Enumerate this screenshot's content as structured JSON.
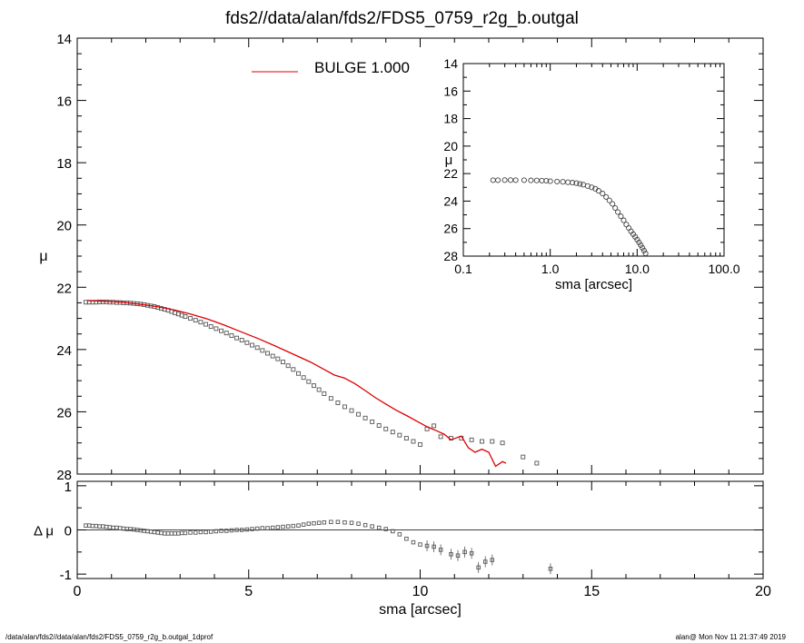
{
  "title": "fds2//data/alan/fds2/FDS5_0759_r2g_b.outgal",
  "footer_left": "/data/alan/fds2//data/alan/fds2/FDS5_0759_r2g_b.outgal_1dprof",
  "footer_right": "alan@  Mon Nov 11 21:37:49 2019",
  "chart_data": [
    {
      "panel": "main",
      "type": "scatter",
      "xlabel": "",
      "ylabel": "μ",
      "xlim": [
        0,
        20
      ],
      "ylim": [
        28,
        14
      ],
      "y_inverted": true,
      "x_ticks": [
        0,
        5,
        10,
        15,
        20
      ],
      "y_ticks": [
        14,
        16,
        18,
        20,
        22,
        24,
        26,
        28
      ],
      "legend": {
        "label": "BULGE  1.000",
        "color": "#dd0000",
        "placement": "top-left"
      },
      "series": [
        {
          "name": "data",
          "marker": "square",
          "color": "#555555",
          "x": [
            0.25,
            0.35,
            0.45,
            0.55,
            0.65,
            0.75,
            0.85,
            0.95,
            1.05,
            1.15,
            1.25,
            1.35,
            1.45,
            1.55,
            1.65,
            1.75,
            1.85,
            1.95,
            2.05,
            2.15,
            2.25,
            2.35,
            2.45,
            2.55,
            2.65,
            2.75,
            2.85,
            2.95,
            3.05,
            3.15,
            3.3,
            3.45,
            3.6,
            3.75,
            3.9,
            4.05,
            4.2,
            4.35,
            4.5,
            4.65,
            4.8,
            4.95,
            5.1,
            5.25,
            5.4,
            5.55,
            5.7,
            5.85,
            6.0,
            6.15,
            6.3,
            6.45,
            6.6,
            6.75,
            6.9,
            7.05,
            7.2,
            7.4,
            7.6,
            7.8,
            8.0,
            8.2,
            8.4,
            8.6,
            8.8,
            9.0,
            9.2,
            9.4,
            9.6,
            9.8,
            10.0,
            10.2,
            10.4,
            10.6,
            10.9,
            11.2,
            11.5,
            11.8,
            12.1,
            12.4,
            13.0,
            13.4
          ],
          "y": [
            22.48,
            22.48,
            22.48,
            22.48,
            22.47,
            22.47,
            22.47,
            22.48,
            22.48,
            22.49,
            22.49,
            22.5,
            22.5,
            22.51,
            22.52,
            22.53,
            22.54,
            22.56,
            22.58,
            22.6,
            22.62,
            22.65,
            22.68,
            22.71,
            22.74,
            22.78,
            22.82,
            22.86,
            22.9,
            22.94,
            23.0,
            23.06,
            23.12,
            23.19,
            23.26,
            23.33,
            23.4,
            23.47,
            23.55,
            23.63,
            23.7,
            23.78,
            23.86,
            23.94,
            24.03,
            24.12,
            24.21,
            24.3,
            24.4,
            24.52,
            24.64,
            24.77,
            24.9,
            25.03,
            25.16,
            25.29,
            25.42,
            25.57,
            25.71,
            25.84,
            25.96,
            26.08,
            26.2,
            26.32,
            26.44,
            26.55,
            26.65,
            26.75,
            26.85,
            26.95,
            27.05,
            26.55,
            26.45,
            26.8,
            26.85,
            26.85,
            26.9,
            26.95,
            26.95,
            27.0,
            27.45,
            27.65
          ]
        },
        {
          "name": "BULGE  1.000",
          "type": "line",
          "color": "#dd0000",
          "x": [
            0.3,
            0.8,
            1.3,
            1.8,
            2.3,
            2.8,
            3.3,
            3.8,
            4.3,
            4.8,
            5.3,
            5.8,
            6.3,
            6.8,
            7.2,
            7.5,
            7.8,
            8.1,
            8.4,
            8.7,
            9.0,
            9.3,
            9.6,
            9.9,
            10.2,
            10.5,
            10.7,
            10.9,
            11.2,
            11.4,
            11.6,
            11.8,
            12.0,
            12.2,
            12.4,
            12.5
          ],
          "y": [
            22.43,
            22.45,
            22.48,
            22.54,
            22.62,
            22.72,
            22.86,
            23.02,
            23.22,
            23.44,
            23.66,
            23.9,
            24.15,
            24.4,
            24.64,
            24.82,
            24.92,
            25.1,
            25.32,
            25.55,
            25.75,
            25.95,
            26.12,
            26.3,
            26.48,
            26.62,
            26.72,
            26.9,
            26.78,
            27.15,
            27.3,
            27.2,
            27.3,
            27.75,
            27.6,
            27.65
          ]
        }
      ]
    },
    {
      "panel": "inset",
      "type": "scatter",
      "xlabel": "sma [arcsec]",
      "ylabel": "μ",
      "x_scale": "log",
      "xlim": [
        0.1,
        100
      ],
      "ylim": [
        28,
        14
      ],
      "y_inverted": true,
      "x_ticks": [
        0.1,
        1.0,
        10.0,
        100.0
      ],
      "x_tick_labels": [
        "0.1",
        "1.0",
        "10.0",
        "100.0"
      ],
      "y_ticks": [
        14,
        16,
        18,
        20,
        22,
        24,
        26,
        28
      ],
      "series": [
        {
          "name": "",
          "marker": "circle",
          "color": "#444444",
          "x": [
            0.22,
            0.25,
            0.3,
            0.35,
            0.4,
            0.5,
            0.6,
            0.7,
            0.8,
            0.9,
            1.0,
            1.2,
            1.4,
            1.6,
            1.8,
            2.0,
            2.2,
            2.4,
            2.7,
            3.0,
            3.3,
            3.6,
            4.0,
            4.4,
            4.8,
            5.2,
            5.6,
            6.0,
            6.5,
            7.0,
            7.5,
            8.0,
            8.5,
            9.0,
            9.5,
            10.0,
            10.5,
            11.0,
            11.5,
            12.0,
            12.5
          ],
          "y": [
            22.48,
            22.48,
            22.47,
            22.47,
            22.48,
            22.48,
            22.49,
            22.5,
            22.51,
            22.52,
            22.55,
            22.58,
            22.6,
            22.63,
            22.66,
            22.7,
            22.75,
            22.8,
            22.9,
            23.0,
            23.1,
            23.25,
            23.45,
            23.7,
            23.95,
            24.2,
            24.5,
            24.8,
            25.1,
            25.4,
            25.7,
            25.95,
            26.2,
            26.4,
            26.6,
            26.8,
            27.0,
            27.2,
            27.4,
            27.6,
            27.8
          ]
        }
      ]
    },
    {
      "panel": "residual",
      "type": "scatter",
      "xlabel": "sma [arcsec]",
      "ylabel": "Δ μ",
      "xlim": [
        0,
        20
      ],
      "ylim": [
        -1.1,
        1.1
      ],
      "x_ticks": [
        0,
        5,
        10,
        15,
        20
      ],
      "y_ticks": [
        -1,
        0,
        1
      ],
      "zero_line": true,
      "series": [
        {
          "name": "",
          "marker": "square",
          "color": "#555555",
          "x": [
            0.25,
            0.35,
            0.45,
            0.55,
            0.65,
            0.75,
            0.85,
            0.95,
            1.05,
            1.15,
            1.25,
            1.35,
            1.45,
            1.55,
            1.65,
            1.75,
            1.85,
            1.95,
            2.05,
            2.15,
            2.25,
            2.35,
            2.45,
            2.55,
            2.65,
            2.75,
            2.85,
            2.95,
            3.05,
            3.15,
            3.3,
            3.45,
            3.6,
            3.75,
            3.9,
            4.05,
            4.2,
            4.35,
            4.5,
            4.65,
            4.8,
            4.95,
            5.1,
            5.25,
            5.4,
            5.55,
            5.7,
            5.85,
            6.0,
            6.15,
            6.3,
            6.45,
            6.6,
            6.75,
            6.9,
            7.05,
            7.2,
            7.4,
            7.6,
            7.8,
            8.0,
            8.2,
            8.4,
            8.6,
            8.8,
            9.0,
            9.2,
            9.4,
            9.6,
            9.8,
            10.0,
            10.2,
            10.4,
            10.6,
            10.9,
            11.1,
            11.3,
            11.5,
            11.7,
            11.9,
            12.1,
            13.8
          ],
          "y": [
            0.1,
            0.1,
            0.09,
            0.09,
            0.08,
            0.08,
            0.07,
            0.06,
            0.05,
            0.05,
            0.04,
            0.03,
            0.02,
            0.02,
            0.01,
            0.0,
            -0.01,
            -0.02,
            -0.03,
            -0.04,
            -0.05,
            -0.06,
            -0.07,
            -0.08,
            -0.08,
            -0.08,
            -0.08,
            -0.08,
            -0.07,
            -0.07,
            -0.06,
            -0.06,
            -0.05,
            -0.05,
            -0.04,
            -0.03,
            -0.02,
            -0.02,
            -0.01,
            0.0,
            0.0,
            0.01,
            0.02,
            0.03,
            0.04,
            0.04,
            0.05,
            0.06,
            0.07,
            0.08,
            0.09,
            0.1,
            0.12,
            0.14,
            0.15,
            0.16,
            0.17,
            0.18,
            0.18,
            0.17,
            0.16,
            0.14,
            0.11,
            0.08,
            0.05,
            0.02,
            -0.03,
            -0.1,
            -0.2,
            -0.28,
            -0.33,
            -0.36,
            -0.38,
            -0.45,
            -0.55,
            -0.58,
            -0.5,
            -0.53,
            -0.85,
            -0.72,
            -0.68,
            -0.88
          ]
        }
      ]
    }
  ]
}
